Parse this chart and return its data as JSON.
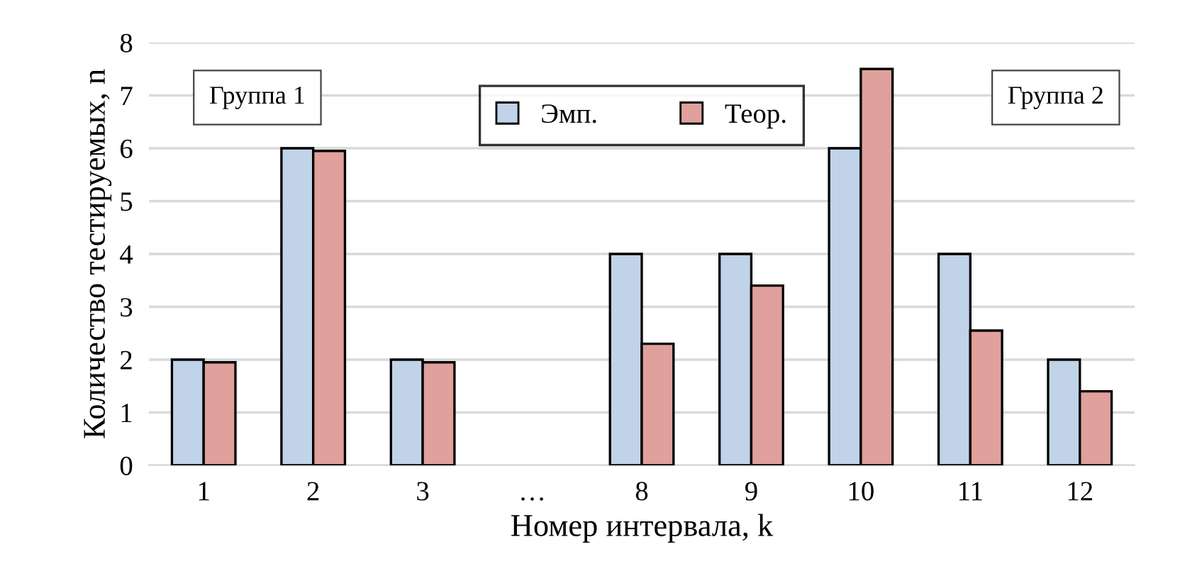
{
  "chart_data": {
    "type": "bar",
    "xlabel": "Номер интервала, k",
    "ylabel": "Количество тестируемых, n",
    "categories": [
      "1",
      "2",
      "3",
      "…",
      "8",
      "9",
      "10",
      "11",
      "12"
    ],
    "series": [
      {
        "name": "Эмп.",
        "color": "#c0d3e8",
        "values": [
          2,
          6,
          2,
          null,
          4,
          4,
          6,
          4,
          2
        ]
      },
      {
        "name": "Теор.",
        "color": "#e0a09c",
        "values": [
          1.95,
          5.95,
          1.95,
          null,
          2.3,
          3.4,
          7.5,
          2.55,
          1.4
        ]
      }
    ],
    "ylim": [
      0,
      8
    ],
    "yticks": [
      0,
      1,
      2,
      3,
      4,
      5,
      6,
      7,
      8
    ],
    "grid": "y",
    "legend": "top",
    "annotations": [
      "Группа 1",
      "Группа 2"
    ]
  }
}
